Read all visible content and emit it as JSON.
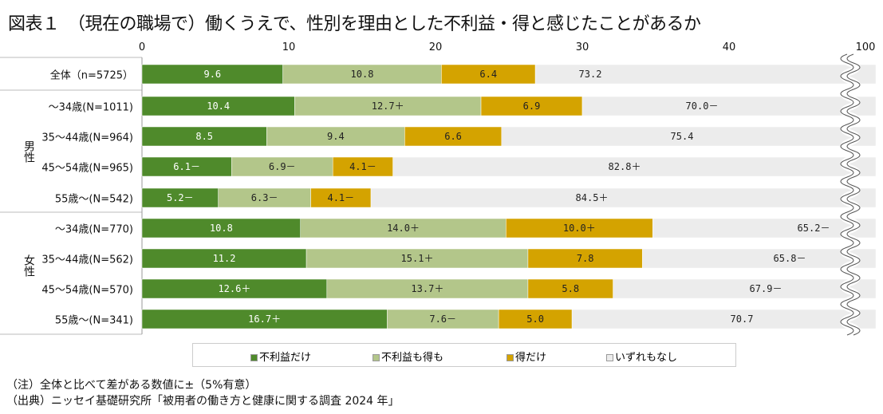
{
  "title": "図表１　（現在の職場で）働くうえで、性別を理由とした不利益・得と感じたことがあるか",
  "chart_data": {
    "type": "bar",
    "orientation": "horizontal",
    "stacked": true,
    "x_ticks": [
      "0",
      "10",
      "20",
      "30",
      "40",
      "100"
    ],
    "axis_break": "between 40 and 100",
    "groups": [
      {
        "label": "",
        "rows": [
          0
        ]
      },
      {
        "label": "男性",
        "rows": [
          1,
          2,
          3,
          4
        ]
      },
      {
        "label": "女性",
        "rows": [
          5,
          6,
          7,
          8
        ]
      }
    ],
    "categories": [
      "全体（n=5725）",
      "～34歳(N=1011)",
      "35～44歳(N=964)",
      "45～54歳(N=965)",
      "55歳～(N=542)",
      "～34歳(N=770)",
      "35～44歳(N=562)",
      "45～54歳(N=570)",
      "55歳～(N=341)"
    ],
    "series": [
      {
        "name": "不利益だけ",
        "color": "#4f8a2b",
        "values": [
          9.6,
          10.4,
          8.5,
          6.1,
          5.2,
          10.8,
          11.2,
          12.6,
          16.7
        ],
        "labels": [
          "9.6",
          "10.4",
          "8.5",
          "6.1－",
          "5.2－",
          "10.8",
          "11.2",
          "12.6＋",
          "16.7＋"
        ]
      },
      {
        "name": "不利益も得も",
        "color": "#b3c68a",
        "values": [
          10.8,
          12.7,
          9.4,
          6.9,
          6.3,
          14.0,
          15.1,
          13.7,
          7.6
        ],
        "labels": [
          "10.8",
          "12.7＋",
          "9.4",
          "6.9－",
          "6.3－",
          "14.0＋",
          "15.1＋",
          "13.7＋",
          "7.6－"
        ]
      },
      {
        "name": "得だけ",
        "color": "#d4a300",
        "values": [
          6.4,
          6.9,
          6.6,
          4.1,
          4.1,
          10.0,
          7.8,
          5.8,
          5.0
        ],
        "labels": [
          "6.4",
          "6.9",
          "6.6",
          "4.1－",
          "4.1－",
          "10.0＋",
          "7.8",
          "5.8",
          "5.0"
        ]
      },
      {
        "name": "いずれもなし",
        "color": "#ececec",
        "values": [
          73.2,
          70.0,
          75.4,
          82.8,
          84.5,
          65.2,
          65.8,
          67.9,
          70.7
        ],
        "labels": [
          "73.2",
          "70.0－",
          "75.4",
          "82.8＋",
          "84.5＋",
          "65.2－",
          "65.8－",
          "67.9－",
          "70.7"
        ]
      }
    ],
    "legend_position": "bottom"
  },
  "notes": [
    "（注）全体と比べて差がある数値に±（5%有意）",
    "（出典）ニッセイ基礎研究所「被用者の働き方と健康に関する調査 2024 年」"
  ]
}
